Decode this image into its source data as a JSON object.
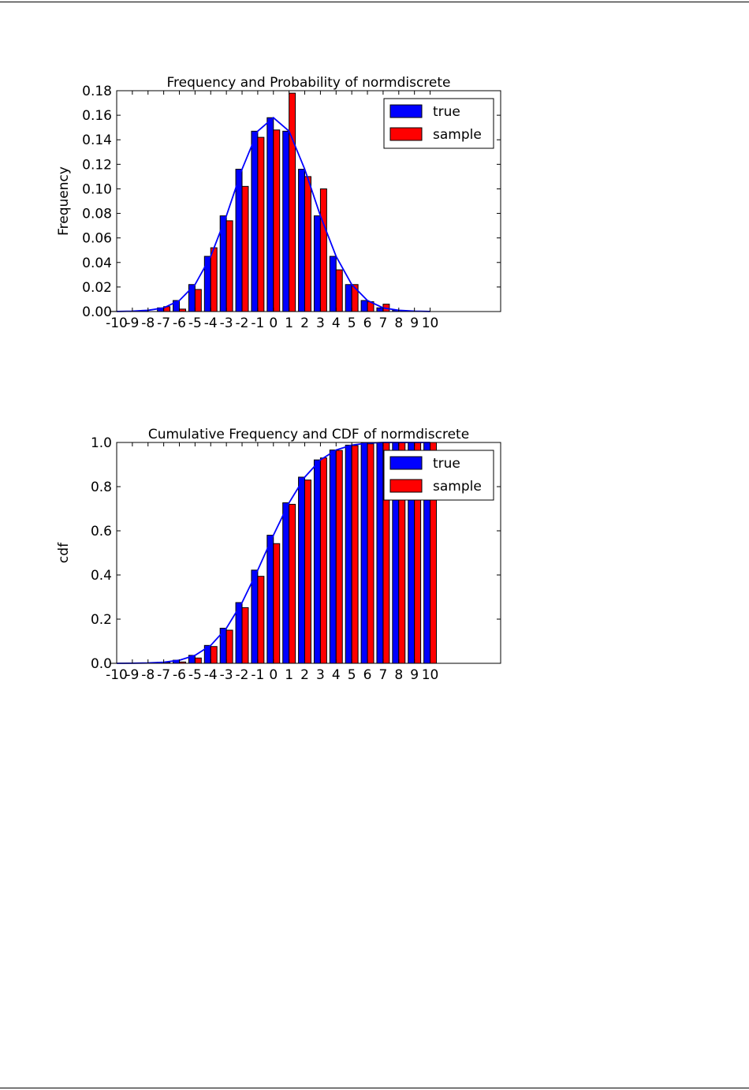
{
  "chart_data": [
    {
      "type": "bar",
      "title": "Frequency and Probability of normdiscrete",
      "xlabel": "",
      "ylabel": "Frequency",
      "x": [
        -10,
        -9,
        -8,
        -7,
        -6,
        -5,
        -4,
        -3,
        -2,
        -1,
        0,
        1,
        2,
        3,
        4,
        5,
        6,
        7,
        8,
        9,
        10
      ],
      "xtick_labels": [
        "-10",
        "-9",
        "-8",
        "-7",
        "-6",
        "-5",
        "-4",
        "-3",
        "-2",
        "-1",
        "0",
        "1",
        "2",
        "3",
        "4",
        "5",
        "6",
        "7",
        "8",
        "9",
        "10"
      ],
      "xlim": [
        -10,
        14.5
      ],
      "ylim": [
        0,
        0.18
      ],
      "yticks": [
        0,
        0.02,
        0.04,
        0.06,
        0.08,
        0.1,
        0.12,
        0.14,
        0.16,
        0.18
      ],
      "ytick_labels": [
        "0.00",
        "0.02",
        "0.04",
        "0.06",
        "0.08",
        "0.10",
        "0.12",
        "0.14",
        "0.16",
        "0.18"
      ],
      "legend": "top-right",
      "series": [
        {
          "name": "true",
          "color": "#0000ff",
          "values": [
            0.0001,
            0.0003,
            0.001,
            0.003,
            0.009,
            0.022,
            0.045,
            0.078,
            0.116,
            0.147,
            0.158,
            0.147,
            0.116,
            0.078,
            0.045,
            0.022,
            0.009,
            0.003,
            0.001,
            0.0003,
            0.0001
          ]
        },
        {
          "name": "sample",
          "color": "#ff0000",
          "values": [
            0,
            0,
            0,
            0.004,
            0.002,
            0.018,
            0.052,
            0.074,
            0.102,
            0.142,
            0.148,
            0.178,
            0.11,
            0.1,
            0.034,
            0.022,
            0.008,
            0.006,
            0,
            0,
            0
          ]
        }
      ],
      "line": {
        "series": "true",
        "color": "#0000ff"
      }
    },
    {
      "type": "bar",
      "title": "Cumulative Frequency and CDF of normdiscrete",
      "xlabel": "",
      "ylabel": "cdf",
      "x": [
        -10,
        -9,
        -8,
        -7,
        -6,
        -5,
        -4,
        -3,
        -2,
        -1,
        0,
        1,
        2,
        3,
        4,
        5,
        6,
        7,
        8,
        9,
        10
      ],
      "xtick_labels": [
        "-10",
        "-9",
        "-8",
        "-7",
        "-6",
        "-5",
        "-4",
        "-3",
        "-2",
        "-1",
        "0",
        "1",
        "2",
        "3",
        "4",
        "5",
        "6",
        "7",
        "8",
        "9",
        "10"
      ],
      "xlim": [
        -10,
        14.5
      ],
      "ylim": [
        0,
        1.0
      ],
      "yticks": [
        0,
        0.2,
        0.4,
        0.6,
        0.8,
        1.0
      ],
      "ytick_labels": [
        "0.0",
        "0.2",
        "0.4",
        "0.6",
        "0.8",
        "1.0"
      ],
      "legend": "top-right",
      "series": [
        {
          "name": "true",
          "color": "#0000ff",
          "values": [
            0.0001,
            0.0004,
            0.0015,
            0.005,
            0.014,
            0.036,
            0.081,
            0.159,
            0.275,
            0.422,
            0.58,
            0.727,
            0.843,
            0.921,
            0.966,
            0.988,
            0.997,
            1.0,
            1.0,
            1.0,
            1.0
          ]
        },
        {
          "name": "sample",
          "color": "#ff0000",
          "values": [
            0,
            0,
            0,
            0.004,
            0.006,
            0.024,
            0.076,
            0.15,
            0.252,
            0.394,
            0.542,
            0.72,
            0.83,
            0.93,
            0.964,
            0.986,
            0.994,
            1.0,
            1.0,
            1.0,
            1.0
          ]
        }
      ],
      "line": {
        "series": "true",
        "color": "#0000ff"
      }
    }
  ]
}
